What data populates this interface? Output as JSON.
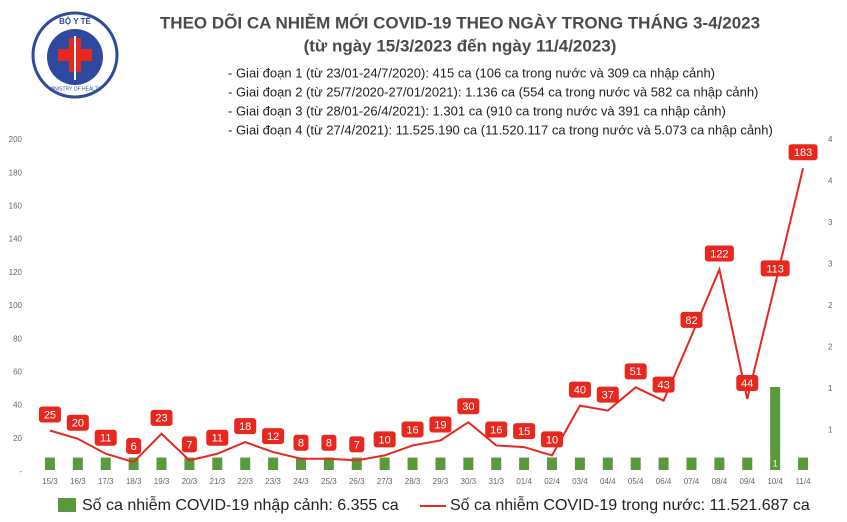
{
  "logo": {
    "top": "BỘ Y TẾ",
    "bottom": "MINISTRY OF HEALTH"
  },
  "chart_data": {
    "type": "combo",
    "title": "THEO DÕI CA NHIỄM MỚI COVID-19 THEO NGÀY TRONG THÁNG 3-4/2023",
    "subtitle": "(từ ngày 15/3/2023 đến ngày 11/4/2023)",
    "notes": [
      "- Giai đoạn 1 (từ 23/01-24/7/2020): 415 ca (106 ca trong nước và 309 ca nhập cảnh)",
      "- Giai đoạn 2 (từ 25/7/2020-27/01/2021): 1.136 ca (554 ca trong nước và 582 ca nhập cảnh)",
      "- Giai đoạn 3 (từ 28/01-26/4/2021): 1.301 ca (910 ca trong nước và 391 ca nhập cảnh)",
      "- Giai đoạn 4 (từ 27/4/2021): 11.525.190 ca (11.520.117 ca trong nước và 5.073 ca nhập cảnh)"
    ],
    "categories": [
      "15/3",
      "16/3",
      "17/3",
      "18/3",
      "19/3",
      "20/3",
      "21/3",
      "22/3",
      "23/3",
      "24/3",
      "25/3",
      "26/3",
      "27/3",
      "28/3",
      "29/3",
      "30/3",
      "31/3",
      "01/4",
      "02/4",
      "03/4",
      "04/4",
      "05/4",
      "06/4",
      "07/4",
      "08/4",
      "09/4",
      "10/4",
      "11/4"
    ],
    "series": [
      {
        "name": "Số ca nhiễm COVID-19 nhập cảnh: 6.355 ca",
        "type": "bar",
        "axis": "y2",
        "color": "#5a9a3c",
        "values": [
          0.15,
          0.15,
          0.15,
          0.15,
          0.15,
          0.15,
          0.15,
          0.15,
          0.15,
          0.15,
          0.15,
          0.15,
          0.15,
          0.15,
          0.15,
          0.15,
          0.15,
          0.15,
          0.15,
          0.15,
          0.15,
          0.15,
          0.15,
          0.15,
          0.15,
          0.15,
          1,
          0.15
        ],
        "value_labels": [
          null,
          null,
          null,
          null,
          null,
          null,
          null,
          null,
          null,
          null,
          null,
          null,
          null,
          null,
          null,
          null,
          null,
          null,
          null,
          null,
          null,
          null,
          null,
          null,
          null,
          null,
          "1",
          null
        ]
      },
      {
        "name": "Số ca nhiễm COVID-19 trong nước: 11.521.687 ca",
        "type": "line",
        "color": "#e8281e",
        "values": [
          25,
          20,
          11,
          6,
          23,
          7,
          11,
          18,
          12,
          8,
          8,
          7,
          10,
          16,
          19,
          30,
          16,
          15,
          10,
          40,
          37,
          51,
          43,
          82,
          122,
          44,
          113,
          183
        ]
      }
    ],
    "ylim": [
      0,
      200
    ],
    "yticks": [
      {
        "value": 0,
        "label": "-"
      },
      20,
      40,
      60,
      80,
      100,
      120,
      140,
      160,
      180,
      200
    ],
    "y2lim": [
      0,
      4
    ],
    "y2ticks": [
      {
        "value": 0.5,
        "label": "1"
      },
      {
        "value": 1,
        "label": "1"
      },
      {
        "value": 1.5,
        "label": "2"
      },
      {
        "value": 2,
        "label": "2"
      },
      {
        "value": 2.5,
        "label": "3"
      },
      {
        "value": 3,
        "label": "3"
      },
      {
        "value": 3.5,
        "label": "4"
      },
      {
        "value": 4,
        "label": "4"
      }
    ]
  }
}
